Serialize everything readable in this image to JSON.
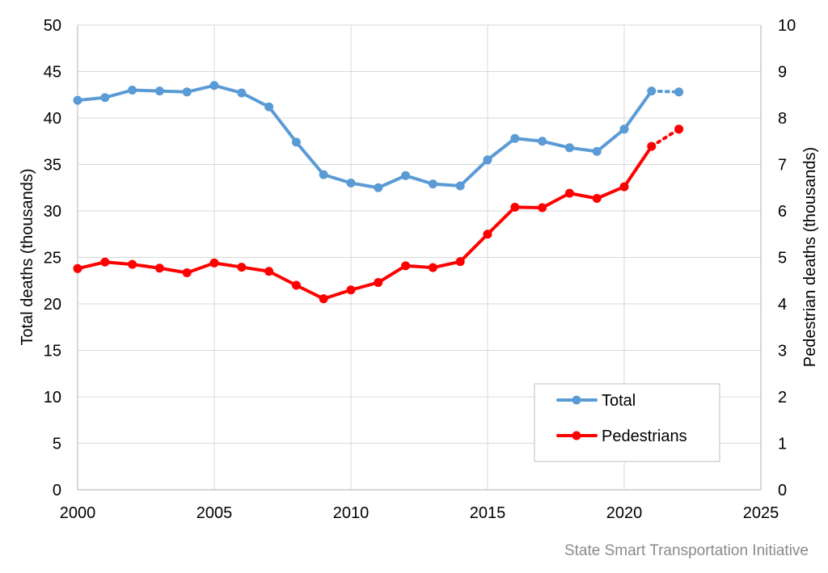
{
  "chart_data": {
    "type": "line",
    "title": "",
    "xlabel": "",
    "ylabel": "Total deaths (thousands)",
    "y2label": "Pedestrian deaths (thousands)",
    "xlim": [
      2000,
      2025
    ],
    "ylim": [
      0,
      50
    ],
    "y2lim": [
      0,
      10
    ],
    "xticks": [
      "2000",
      "2005",
      "2010",
      "2015",
      "2020",
      "2025"
    ],
    "yticks": [
      "0",
      "5",
      "10",
      "15",
      "20",
      "25",
      "30",
      "35",
      "40",
      "45",
      "50"
    ],
    "y2ticks": [
      "0",
      "1",
      "2",
      "3",
      "4",
      "5",
      "6",
      "7",
      "8",
      "9",
      "10"
    ],
    "grid": true,
    "legend_position": "bottom-right",
    "x": [
      2000,
      2001,
      2002,
      2003,
      2004,
      2005,
      2006,
      2007,
      2008,
      2009,
      2010,
      2011,
      2012,
      2013,
      2014,
      2015,
      2016,
      2017,
      2018,
      2019,
      2020,
      2021,
      2022
    ],
    "series": [
      {
        "name": "Total",
        "axis": "left",
        "color": "#5b9bd5",
        "values": [
          41.9,
          42.2,
          43.0,
          42.9,
          42.8,
          43.5,
          42.7,
          41.2,
          37.4,
          33.9,
          33.0,
          32.5,
          33.8,
          32.9,
          32.7,
          35.5,
          37.8,
          37.5,
          36.8,
          36.4,
          38.8,
          42.9,
          42.8
        ],
        "projected_from_index": 21
      },
      {
        "name": "Pedestrians",
        "axis": "right",
        "color": "#ff0000",
        "values": [
          4.76,
          4.9,
          4.85,
          4.77,
          4.67,
          4.88,
          4.79,
          4.7,
          4.4,
          4.11,
          4.3,
          4.46,
          4.82,
          4.78,
          4.91,
          5.5,
          6.08,
          6.07,
          6.38,
          6.27,
          6.52,
          7.39,
          7.76
        ],
        "projected_from_index": 21
      }
    ]
  },
  "credit": "State Smart Transportation Initiative"
}
